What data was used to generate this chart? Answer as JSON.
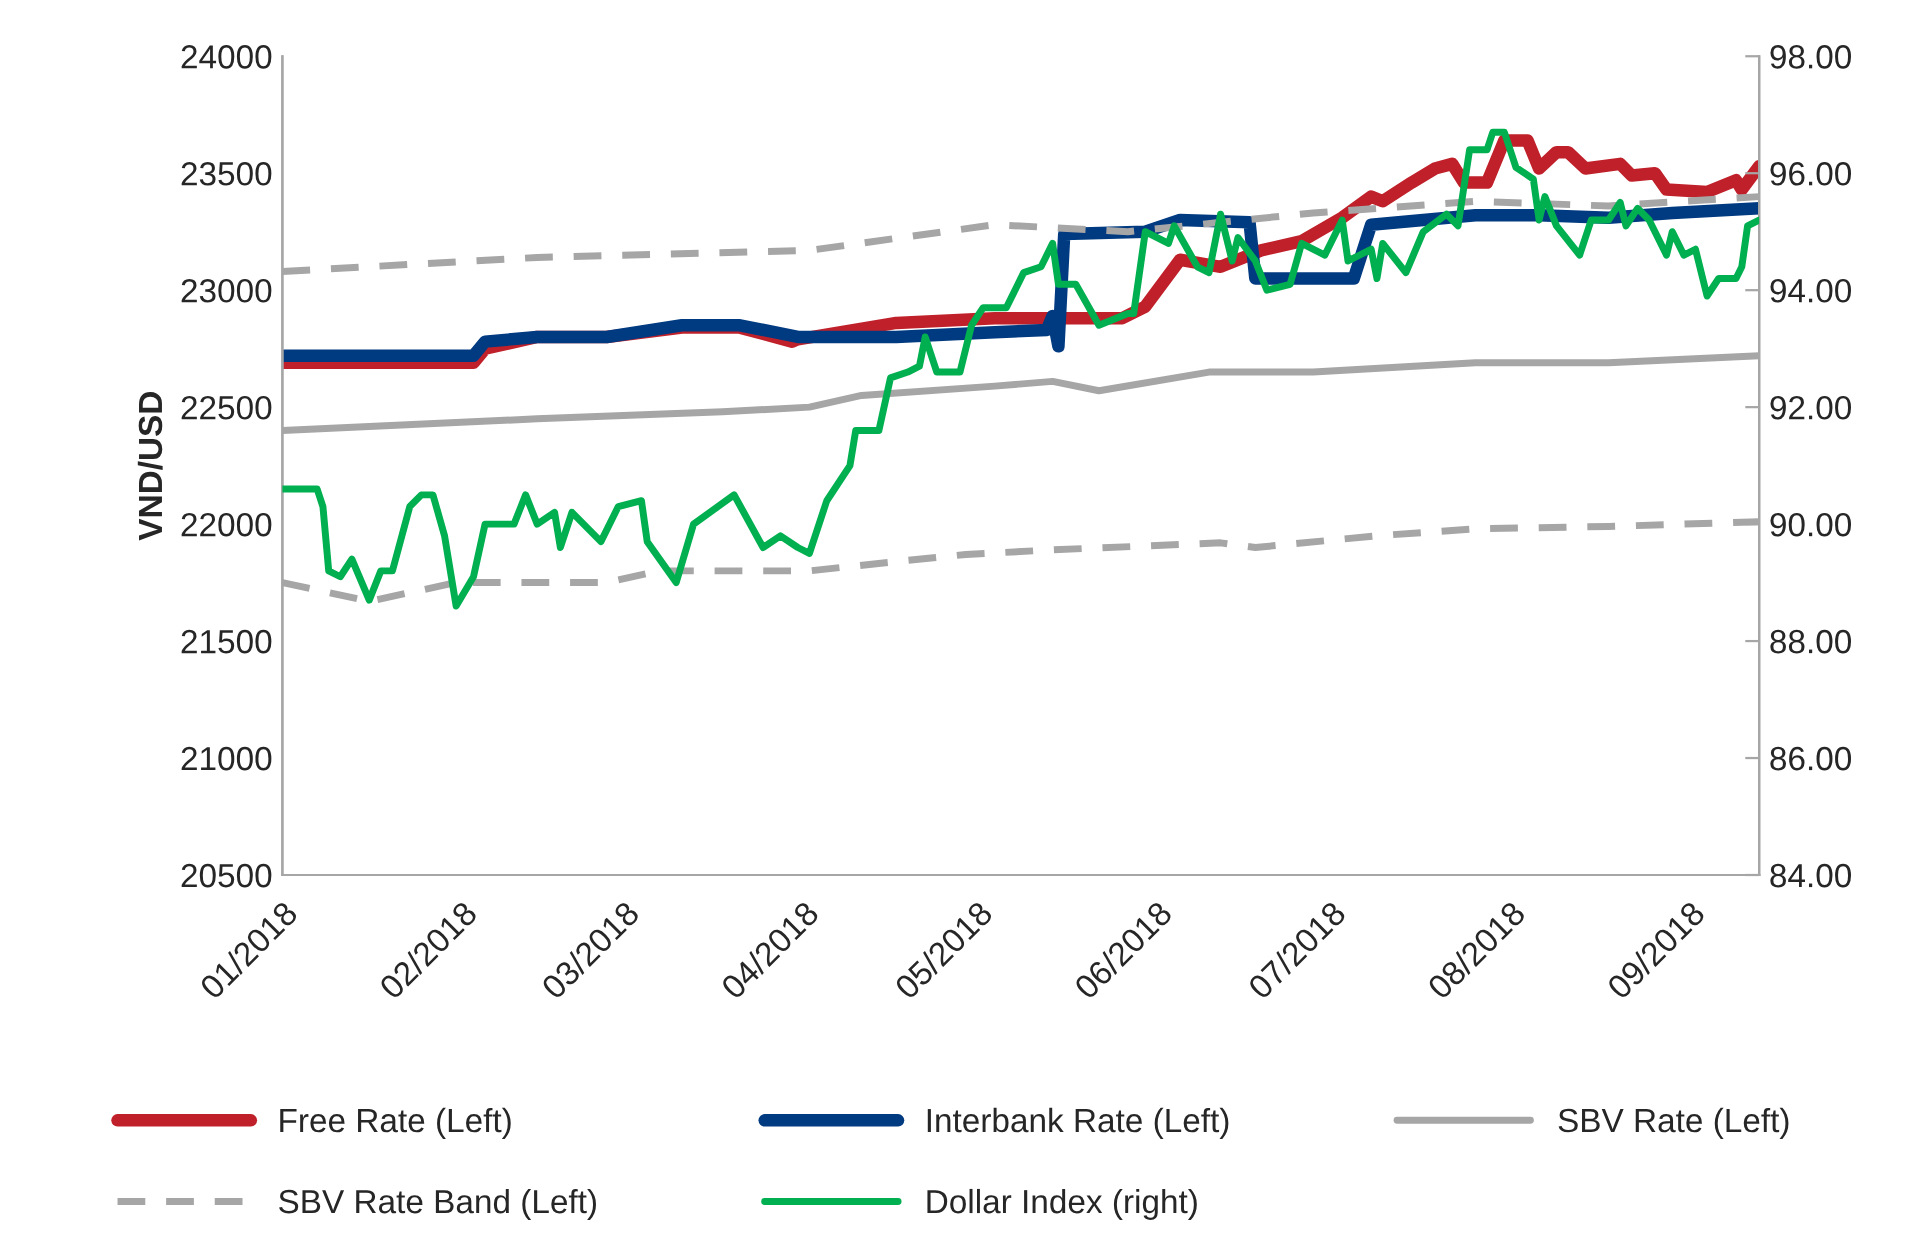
{
  "chart_data": {
    "type": "line",
    "ylabel": "VND/USD",
    "xlim": [
      "2018-01-01",
      "2018-09-13"
    ],
    "xticks": [
      {
        "value": "2018-01-01",
        "label": "01/2018"
      },
      {
        "value": "2018-02-01",
        "label": "02/2018"
      },
      {
        "value": "2018-03-01",
        "label": "03/2018"
      },
      {
        "value": "2018-04-01",
        "label": "04/2018"
      },
      {
        "value": "2018-05-01",
        "label": "05/2018"
      },
      {
        "value": "2018-06-01",
        "label": "06/2018"
      },
      {
        "value": "2018-07-01",
        "label": "07/2018"
      },
      {
        "value": "2018-08-01",
        "label": "08/2018"
      },
      {
        "value": "2018-09-01",
        "label": "09/2018"
      }
    ],
    "ylim": [
      20500,
      24000
    ],
    "yticks": [
      20500,
      21000,
      21500,
      22000,
      22500,
      23000,
      23500,
      24000
    ],
    "y2lim": [
      84,
      98
    ],
    "y2ticks": [
      {
        "value": 84,
        "label": "84.00"
      },
      {
        "value": 86,
        "label": "86.00"
      },
      {
        "value": 88,
        "label": "88.00"
      },
      {
        "value": 90,
        "label": "90.00"
      },
      {
        "value": 92,
        "label": "92.00"
      },
      {
        "value": 94,
        "label": "94.00"
      },
      {
        "value": 96,
        "label": "96.00"
      },
      {
        "value": 98,
        "label": "98.00"
      }
    ],
    "grid": false,
    "legend": "bottom",
    "marker": "none",
    "series": [
      {
        "name": "Free Rate (Left)",
        "color": "#c0202a",
        "line_style": "solid",
        "x": [
          "2018-01-01",
          "2018-02-03",
          "2018-02-05",
          "2018-02-14",
          "2018-02-26",
          "2018-03-11",
          "2018-03-21",
          "2018-03-30",
          "2018-03-31",
          "2018-04-17",
          "2018-05-04",
          "2018-05-26",
          "2018-05-30",
          "2018-06-05",
          "2018-06-12",
          "2018-06-19",
          "2018-06-26",
          "2018-07-03",
          "2018-07-08",
          "2018-07-10",
          "2018-07-15",
          "2018-07-19",
          "2018-07-22",
          "2018-07-24",
          "2018-07-28",
          "2018-07-31",
          "2018-08-04",
          "2018-08-06",
          "2018-08-09",
          "2018-08-11",
          "2018-08-14",
          "2018-08-20",
          "2018-08-22",
          "2018-08-26",
          "2018-08-28",
          "2018-09-04",
          "2018-09-09",
          "2018-09-10",
          "2018-09-13"
        ],
        "values": [
          22690,
          22690,
          22750,
          22800,
          22800,
          22840,
          22840,
          22780,
          22790,
          22860,
          22880,
          22880,
          22930,
          23130,
          23100,
          23170,
          23210,
          23310,
          23400,
          23380,
          23460,
          23520,
          23540,
          23460,
          23460,
          23640,
          23640,
          23520,
          23590,
          23590,
          23520,
          23540,
          23490,
          23500,
          23430,
          23420,
          23470,
          23430,
          23530
        ]
      },
      {
        "name": "Interbank Rate (Left)",
        "color": "#003a80",
        "line_style": "solid",
        "x": [
          "2018-01-01",
          "2018-02-03",
          "2018-02-05",
          "2018-02-14",
          "2018-02-26",
          "2018-03-11",
          "2018-03-21",
          "2018-03-31",
          "2018-04-17",
          "2018-05-04",
          "2018-05-13",
          "2018-05-14",
          "2018-05-15",
          "2018-05-16",
          "2018-05-30",
          "2018-06-05",
          "2018-06-17",
          "2018-06-18",
          "2018-07-05",
          "2018-07-08",
          "2018-07-26",
          "2018-08-06",
          "2018-08-18",
          "2018-08-29",
          "2018-09-13"
        ],
        "values": [
          22720,
          22720,
          22780,
          22800,
          22800,
          22850,
          22850,
          22800,
          22800,
          22820,
          22830,
          22890,
          22760,
          23240,
          23250,
          23300,
          23290,
          23050,
          23050,
          23280,
          23320,
          23320,
          23310,
          23330,
          23350
        ]
      },
      {
        "name": "SBV Rate (Left)",
        "color": "#a6a6a6",
        "line_style": "solid",
        "x": [
          "2018-01-01",
          "2018-02-14",
          "2018-03-18",
          "2018-04-02",
          "2018-04-11",
          "2018-05-04",
          "2018-05-14",
          "2018-05-22",
          "2018-06-10",
          "2018-06-28",
          "2018-07-26",
          "2018-08-18",
          "2018-09-13"
        ],
        "values": [
          22400,
          22450,
          22480,
          22500,
          22550,
          22590,
          22610,
          22570,
          22650,
          22650,
          22690,
          22690,
          22720
        ]
      },
      {
        "name": "SBV Rate Band (Left)",
        "color": "#a6a6a6",
        "line_style": "dashed",
        "x": [
          "2018-01-01",
          "2018-02-14",
          "2018-04-02",
          "2018-05-04",
          "2018-05-27",
          "2018-06-28",
          "2018-07-26",
          "2018-08-18",
          "2018-09-13"
        ],
        "values": [
          23080,
          23140,
          23170,
          23280,
          23250,
          23330,
          23380,
          23360,
          23400
        ]
      },
      {
        "color": "#a6a6a6",
        "line_style": "dashed",
        "x": [
          "2018-01-01",
          "2018-01-16",
          "2018-01-31",
          "2018-02-26",
          "2018-03-07",
          "2018-04-02",
          "2018-04-17",
          "2018-04-29",
          "2018-05-14",
          "2018-06-12",
          "2018-06-18",
          "2018-07-09",
          "2018-07-26",
          "2018-08-18",
          "2018-09-13"
        ],
        "values": [
          21750,
          21670,
          21750,
          21750,
          21800,
          21800,
          21840,
          21870,
          21890,
          21920,
          21900,
          21950,
          21980,
          21990,
          22010
        ]
      },
      {
        "name": "Dollar Index (right)",
        "color": "#00b050",
        "line_style": "solid",
        "axis": "y2",
        "x": [
          "2018-01-01",
          "2018-01-07",
          "2018-01-08",
          "2018-01-09",
          "2018-01-11",
          "2018-01-13",
          "2018-01-16",
          "2018-01-18",
          "2018-01-20",
          "2018-01-23",
          "2018-01-25",
          "2018-01-27",
          "2018-01-29",
          "2018-01-31",
          "2018-02-03",
          "2018-02-05",
          "2018-02-10",
          "2018-02-12",
          "2018-02-14",
          "2018-02-17",
          "2018-02-18",
          "2018-02-20",
          "2018-02-25",
          "2018-02-28",
          "2018-03-04",
          "2018-03-05",
          "2018-03-10",
          "2018-03-13",
          "2018-03-20",
          "2018-03-25",
          "2018-03-28",
          "2018-03-31",
          "2018-04-02",
          "2018-04-05",
          "2018-04-09",
          "2018-04-10",
          "2018-04-14",
          "2018-04-16",
          "2018-04-19",
          "2018-04-21",
          "2018-04-22",
          "2018-04-24",
          "2018-04-28",
          "2018-04-30",
          "2018-05-02",
          "2018-05-06",
          "2018-05-09",
          "2018-05-12",
          "2018-05-14",
          "2018-05-15",
          "2018-05-18",
          "2018-05-22",
          "2018-05-27",
          "2018-05-28",
          "2018-05-30",
          "2018-06-03",
          "2018-06-04",
          "2018-06-08",
          "2018-06-10",
          "2018-06-12",
          "2018-06-14",
          "2018-06-15",
          "2018-06-18",
          "2018-06-20",
          "2018-06-24",
          "2018-06-26",
          "2018-06-30",
          "2018-07-03",
          "2018-07-04",
          "2018-07-08",
          "2018-07-09",
          "2018-07-10",
          "2018-07-14",
          "2018-07-17",
          "2018-07-21",
          "2018-07-23",
          "2018-07-25",
          "2018-07-28",
          "2018-07-29",
          "2018-07-31",
          "2018-08-02",
          "2018-08-05",
          "2018-08-06",
          "2018-08-07",
          "2018-08-09",
          "2018-08-13",
          "2018-08-15",
          "2018-08-18",
          "2018-08-20",
          "2018-08-21",
          "2018-08-23",
          "2018-08-25",
          "2018-08-28",
          "2018-08-29",
          "2018-08-31",
          "2018-09-02",
          "2018-09-04",
          "2018-09-06",
          "2018-09-09",
          "2018-09-10",
          "2018-09-11",
          "2018-09-13"
        ],
        "values": [
          90.6,
          90.6,
          90.3,
          89.2,
          89.1,
          89.4,
          88.7,
          89.2,
          89.2,
          90.3,
          90.5,
          90.5,
          89.8,
          88.6,
          89.1,
          90.0,
          90.0,
          90.5,
          90.0,
          90.2,
          89.6,
          90.2,
          89.7,
          90.3,
          90.4,
          89.7,
          89.0,
          90.0,
          90.5,
          89.6,
          89.8,
          89.6,
          89.5,
          90.4,
          91.0,
          91.6,
          91.6,
          92.5,
          92.6,
          92.7,
          93.2,
          92.6,
          92.6,
          93.4,
          93.7,
          93.7,
          94.3,
          94.4,
          94.8,
          94.1,
          94.1,
          93.4,
          93.6,
          93.6,
          95.0,
          94.8,
          95.1,
          94.4,
          94.3,
          95.3,
          94.5,
          94.9,
          94.5,
          94.0,
          94.1,
          94.8,
          94.6,
          95.2,
          94.5,
          94.7,
          94.2,
          94.8,
          94.3,
          95.0,
          95.3,
          95.1,
          96.4,
          96.4,
          96.7,
          96.7,
          96.1,
          95.9,
          95.2,
          95.6,
          95.1,
          94.6,
          95.2,
          95.2,
          95.5,
          95.1,
          95.4,
          95.2,
          94.6,
          95.0,
          94.6,
          94.7,
          93.9,
          94.2,
          94.2,
          94.4,
          95.1,
          95.2
        ]
      }
    ]
  }
}
